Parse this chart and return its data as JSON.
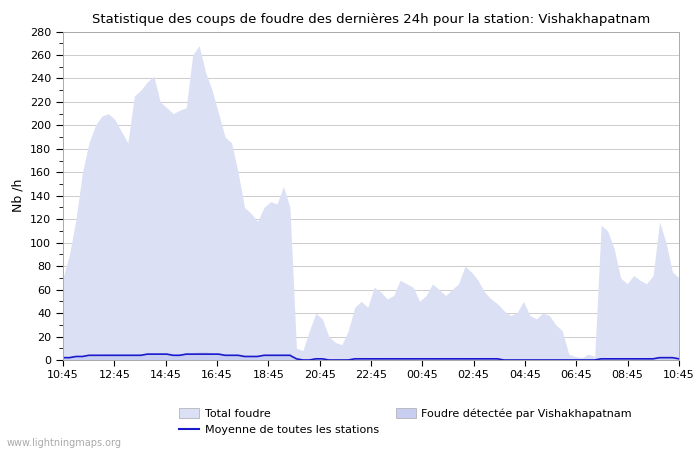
{
  "title": "Statistique des coups de foudre des dernières 24h pour la station: Vishakhapatnam",
  "ylabel": "Nb /h",
  "xlim_labels": [
    "10:45",
    "12:45",
    "14:45",
    "16:45",
    "18:45",
    "20:45",
    "22:45",
    "00:45",
    "02:45",
    "04:45",
    "06:45",
    "08:45",
    "10:45"
  ],
  "ylim": [
    0,
    280
  ],
  "yticks": [
    0,
    20,
    40,
    60,
    80,
    100,
    120,
    140,
    160,
    180,
    200,
    220,
    240,
    260,
    280
  ],
  "background_color": "#ffffff",
  "plot_bg_color": "#ffffff",
  "grid_color": "#cccccc",
  "fill_color_total": "#dce0f5",
  "fill_color_station": "#c8cef0",
  "line_color_moyenne": "#1a1acc",
  "watermark": "www.lightningmaps.org",
  "legend_total": "Total foudre",
  "legend_station": "Foudre détectée par Vishakhapatnam",
  "legend_moyenne": "Moyenne de toutes les stations",
  "x_indices": [
    0,
    1,
    2,
    3,
    4,
    5,
    6,
    7,
    8,
    9,
    10,
    11,
    12,
    13,
    14,
    15,
    16,
    17,
    18,
    19,
    20,
    21,
    22,
    23,
    24,
    25,
    26,
    27,
    28,
    29,
    30,
    31,
    32,
    33,
    34,
    35,
    36,
    37,
    38,
    39,
    40,
    41,
    42,
    43,
    44,
    45,
    46,
    47,
    48,
    49,
    50,
    51,
    52,
    53,
    54,
    55,
    56,
    57,
    58,
    59,
    60,
    61,
    62,
    63,
    64,
    65,
    66,
    67,
    68,
    69,
    70,
    71,
    72,
    73,
    74,
    75,
    76,
    77,
    78,
    79,
    80,
    81,
    82,
    83,
    84,
    85,
    86,
    87,
    88,
    89,
    90,
    91,
    92,
    93,
    94,
    95
  ],
  "total_foudre": [
    70,
    90,
    120,
    160,
    185,
    200,
    208,
    210,
    205,
    195,
    185,
    225,
    230,
    237,
    242,
    220,
    215,
    210,
    213,
    215,
    260,
    268,
    245,
    230,
    210,
    190,
    185,
    160,
    130,
    125,
    118,
    130,
    135,
    133,
    148,
    130,
    10,
    8,
    25,
    40,
    35,
    20,
    15,
    13,
    25,
    45,
    50,
    45,
    62,
    58,
    52,
    55,
    68,
    65,
    62,
    50,
    55,
    65,
    60,
    55,
    60,
    65,
    80,
    75,
    68,
    58,
    52,
    48,
    42,
    38,
    40,
    50,
    38,
    35,
    40,
    38,
    30,
    25,
    5,
    3,
    2,
    5,
    3,
    115,
    110,
    95,
    70,
    65,
    72,
    68,
    65,
    72,
    118,
    100,
    75,
    70
  ],
  "station_foudre": [
    2,
    3,
    3,
    4,
    4,
    4,
    5,
    5,
    5,
    5,
    5,
    5,
    5,
    6,
    6,
    6,
    6,
    5,
    5,
    6,
    6,
    7,
    7,
    6,
    6,
    5,
    5,
    5,
    4,
    4,
    4,
    5,
    5,
    5,
    5,
    5,
    1,
    1,
    1,
    1,
    1,
    1,
    1,
    1,
    1,
    1,
    1,
    1,
    2,
    2,
    1,
    1,
    2,
    2,
    2,
    1,
    1,
    2,
    2,
    1,
    1,
    1,
    2,
    2,
    1,
    1,
    1,
    1,
    1,
    1,
    1,
    1,
    1,
    1,
    1,
    1,
    1,
    1,
    1,
    1,
    1,
    1,
    1,
    2,
    2,
    2,
    1,
    1,
    2,
    2,
    2,
    2,
    3,
    2,
    2,
    2
  ],
  "moyenne_foudre": [
    2,
    2,
    3,
    3,
    4,
    4,
    4,
    4,
    4,
    4,
    4,
    4,
    4,
    5,
    5,
    5,
    5,
    4,
    4,
    5,
    5,
    5,
    5,
    5,
    5,
    4,
    4,
    4,
    3,
    3,
    3,
    4,
    4,
    4,
    4,
    4,
    1,
    0,
    0,
    1,
    1,
    0,
    0,
    0,
    0,
    1,
    1,
    1,
    1,
    1,
    1,
    1,
    1,
    1,
    1,
    1,
    1,
    1,
    1,
    1,
    1,
    1,
    1,
    1,
    1,
    1,
    1,
    1,
    0,
    0,
    0,
    0,
    0,
    0,
    0,
    0,
    0,
    0,
    0,
    0,
    0,
    0,
    0,
    1,
    1,
    1,
    1,
    1,
    1,
    1,
    1,
    1,
    2,
    2,
    2,
    1
  ]
}
